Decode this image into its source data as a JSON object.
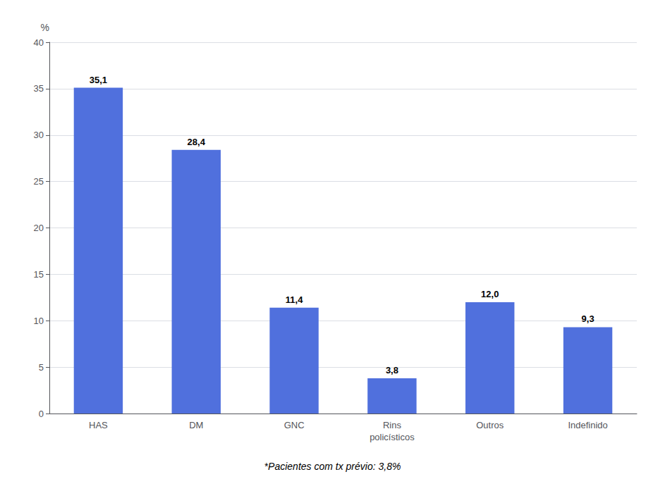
{
  "chart_data": {
    "type": "bar",
    "ylabel": "%",
    "annotation": "*Pacientes com tx prévio: 3,8%",
    "categories": [
      "HAS",
      "DM",
      "GNC",
      "Rins\npolicísticos",
      "Outros",
      "Indefinido"
    ],
    "values": [
      35.1,
      28.4,
      11.4,
      3.8,
      12.0,
      9.3
    ],
    "value_labels": [
      "35,1",
      "28,4",
      "11,4",
      "3,8",
      "12,0",
      "9,3"
    ],
    "data_labels": true,
    "ylim": [
      0,
      40
    ],
    "yticks": [
      0,
      5,
      10,
      15,
      20,
      25,
      30,
      35,
      40
    ],
    "grid": true
  }
}
